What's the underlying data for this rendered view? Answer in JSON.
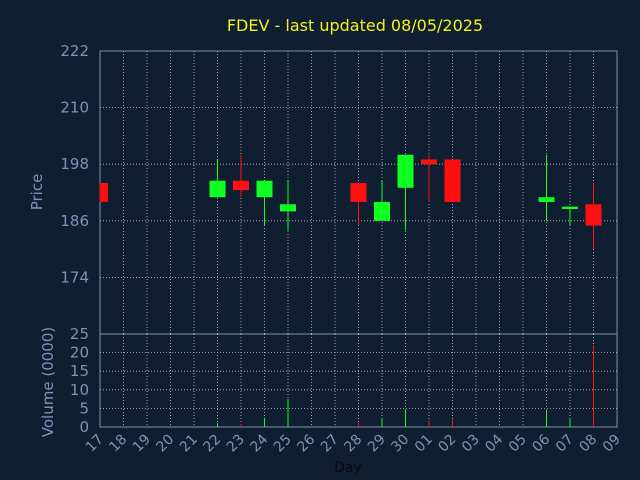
{
  "chart_data": {
    "type": "candlestick",
    "title": "FDEV - last updated 08/05/2025",
    "xlabel": "Day",
    "colors": {
      "background": "#0f1e30",
      "axis": "#7f93b6",
      "grid": "#c8c8c8",
      "up": "#10ff22",
      "down": "#ff1010",
      "title": "#f2f21e"
    },
    "grid": true,
    "x_ticks": [
      "17",
      "18",
      "19",
      "20",
      "21",
      "22",
      "23",
      "24",
      "25",
      "26",
      "27",
      "28",
      "29",
      "30",
      "01",
      "02",
      "03",
      "04",
      "05",
      "06",
      "07",
      "08",
      "09"
    ],
    "price_panel": {
      "ylabel": "Price",
      "ylim": [
        162,
        222
      ],
      "ticks": [
        174,
        186,
        198,
        210,
        222
      ]
    },
    "volume_panel": {
      "ylabel": "Volume (0000)",
      "ylim": [
        0,
        25
      ],
      "ticks": [
        0,
        5,
        10,
        15,
        20,
        25
      ]
    },
    "candles": [
      {
        "day": "17",
        "open": 194,
        "close": 190,
        "high": 194,
        "low": 190,
        "volume": 0
      },
      {
        "day": "22",
        "open": 191,
        "close": 194.5,
        "high": 199,
        "low": 191,
        "volume": 1
      },
      {
        "day": "23",
        "open": 194.5,
        "close": 192.5,
        "high": 200,
        "low": 191,
        "volume": 0.8
      },
      {
        "day": "24",
        "open": 191,
        "close": 194.5,
        "high": 194.5,
        "low": 185,
        "volume": 2.5
      },
      {
        "day": "25",
        "open": 188,
        "close": 189.5,
        "high": 194.5,
        "low": 184,
        "volume": 7.5
      },
      {
        "day": "28",
        "open": 194,
        "close": 190,
        "high": 194,
        "low": 185,
        "volume": 1.2
      },
      {
        "day": "29",
        "open": 186,
        "close": 190,
        "high": 194.5,
        "low": 186,
        "volume": 2.5
      },
      {
        "day": "30",
        "open": 193,
        "close": 200,
        "high": 200,
        "low": 184,
        "volume": 4.5
      },
      {
        "day": "01",
        "open": 199,
        "close": 198,
        "high": 200,
        "low": 190,
        "volume": 1.8
      },
      {
        "day": "02",
        "open": 199,
        "close": 190,
        "high": 199,
        "low": 190,
        "volume": 2
      },
      {
        "day": "06",
        "open": 190,
        "close": 191,
        "high": 200,
        "low": 186,
        "volume": 4.5
      },
      {
        "day": "07",
        "open": 188.5,
        "close": 189,
        "high": 189,
        "low": 185,
        "volume": 2
      },
      {
        "day": "08",
        "open": 189.5,
        "close": 185,
        "high": 194,
        "low": 180,
        "volume": 22
      }
    ]
  }
}
